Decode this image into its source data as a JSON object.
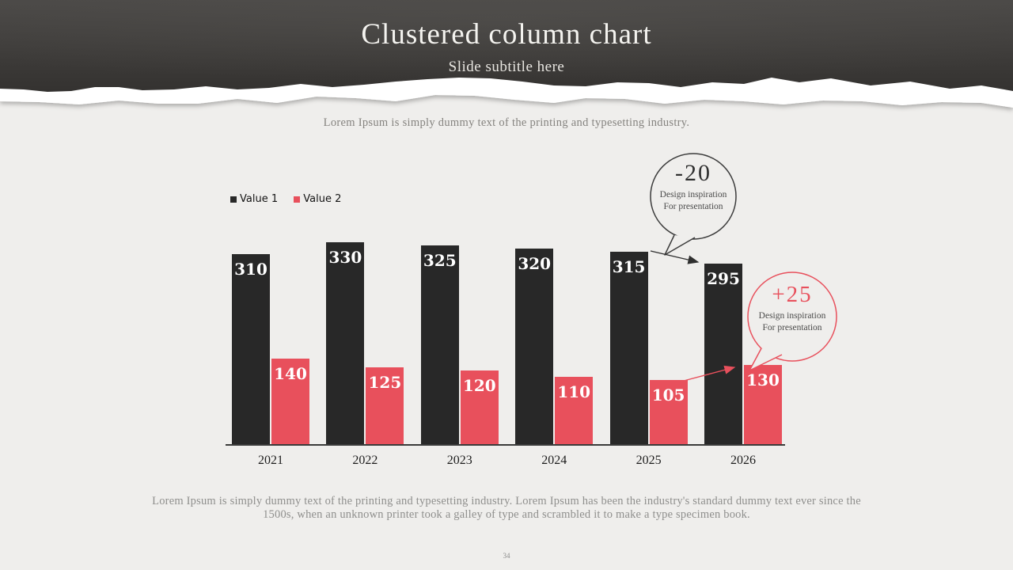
{
  "header": {
    "title": "Clustered column chart",
    "subtitle": "Slide subtitle here"
  },
  "intro_text": "Lorem Ipsum is simply dummy text of the printing and typesetting industry.",
  "footer_text": "Lorem Ipsum is simply dummy text of the printing and typesetting industry. Lorem Ipsum has been the industry's standard dummy text ever since the 1500s, when an unknown printer took a galley of type and scrambled it to make a type specimen book.",
  "page_number": "34",
  "colors": {
    "series1": "#282828",
    "series2": "#e8505c",
    "background": "#efeeec",
    "header_dark": "#3a3836",
    "axis": "#3a3a3a"
  },
  "chart_data": {
    "type": "bar",
    "title": "Clustered column chart",
    "categories": [
      "2021",
      "2022",
      "2023",
      "2024",
      "2025",
      "2026"
    ],
    "series": [
      {
        "name": "Value 1",
        "color": "#282828",
        "values": [
          310,
          330,
          325,
          320,
          315,
          295
        ]
      },
      {
        "name": "Value 2",
        "color": "#e8505c",
        "values": [
          140,
          125,
          120,
          110,
          105,
          130
        ]
      }
    ],
    "ylim": [
      0,
      330
    ],
    "grid": false,
    "data_labels": true,
    "legend_position": "top-left",
    "xlabel": "",
    "ylabel": ""
  },
  "callouts": [
    {
      "delta": "-20",
      "text": "Design inspiration For presentation",
      "color": "#2f2f2f",
      "points_to": "Value 1 2026"
    },
    {
      "delta": "+25",
      "text": "Design inspiration For presentation",
      "color": "#e8505c",
      "points_to": "Value 2 2026"
    }
  ]
}
